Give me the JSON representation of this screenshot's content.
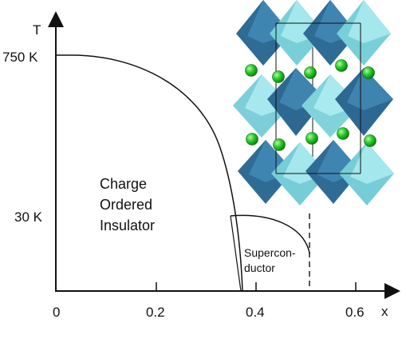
{
  "axes": {
    "y_label": "T",
    "x_label": "x",
    "y_ticks": [
      "750 K",
      "30 K"
    ],
    "x_ticks": [
      "0",
      "0.2",
      "0.4",
      "0.6"
    ]
  },
  "regions": {
    "charge_ordered": [
      "Charge",
      "Ordered",
      "Insulator"
    ],
    "superconductor": [
      "Supercon-",
      "ductor"
    ]
  },
  "colors": {
    "axis": "#111111",
    "octahedron_dark": "#2f6b94",
    "octahedron_light": "#7fd0d8",
    "atom": "#1fae1f"
  },
  "inset": {
    "description_icon": "perovskite-crystal-structure-icon"
  }
}
